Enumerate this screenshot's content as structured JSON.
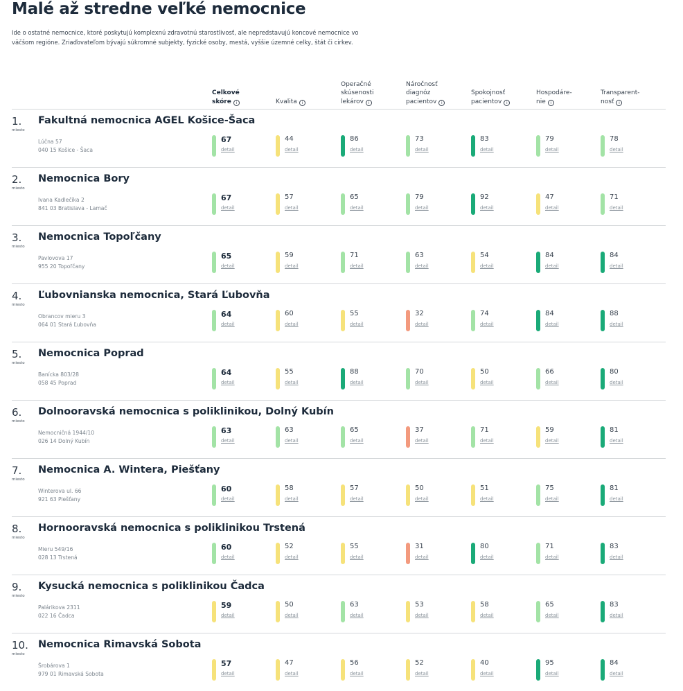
{
  "page": {
    "title": "Malé až stredne veľké nemocnice",
    "intro": "Ide o ostatné nemocnice, ktoré poskytujú komplexnú zdravotnú starostlivosť, ale nepredstavujú koncové nemocnice vo väčšom regióne. Zriaďovateľom bývajú súkromné subjekty, fyzické osoby, mestá, vyššie územné celky, štát či cirkev."
  },
  "colors": {
    "dark_green": "#1aaa78",
    "light_green": "#a3e3a6",
    "yellow": "#f6e27a",
    "salmon": "#f39a7e"
  },
  "columns": [
    {
      "line1": "Celkové",
      "line2": "skóre",
      "line0": ""
    },
    {
      "line1": "",
      "line2": "Kvalita",
      "line0": ""
    },
    {
      "line0": "Operačné",
      "line1": "skúsenosti",
      "line2": "lekárov"
    },
    {
      "line0": "Náročnosť",
      "line1": "diagnóz",
      "line2": "pacientov"
    },
    {
      "line0": "",
      "line1": "Spokojnosť",
      "line2": "pacientov"
    },
    {
      "line0": "",
      "line1": "Hospodáre-",
      "line2": "nie"
    },
    {
      "line0": "",
      "line1": "Transparent-",
      "line2": "nosť"
    }
  ],
  "info_icon": "i",
  "rank_suffix": "miesto",
  "detail_label": "detail",
  "hospitals": [
    {
      "rank": "1.",
      "name": "Fakultná nemocnica AGEL Košice-Šaca",
      "street": "Lúčna 57",
      "city": "040 15 Košice - Šaca",
      "scores": [
        {
          "v": "67",
          "c": "light_green"
        },
        {
          "v": "44",
          "c": "yellow"
        },
        {
          "v": "86",
          "c": "dark_green"
        },
        {
          "v": "73",
          "c": "light_green"
        },
        {
          "v": "83",
          "c": "dark_green"
        },
        {
          "v": "79",
          "c": "light_green"
        },
        {
          "v": "78",
          "c": "light_green"
        }
      ]
    },
    {
      "rank": "2.",
      "name": "Nemocnica Bory",
      "street": "Ivana Kadlečíka 2",
      "city": "841 03 Bratislava - Lamač",
      "scores": [
        {
          "v": "67",
          "c": "light_green"
        },
        {
          "v": "57",
          "c": "yellow"
        },
        {
          "v": "65",
          "c": "light_green"
        },
        {
          "v": "79",
          "c": "light_green"
        },
        {
          "v": "92",
          "c": "dark_green"
        },
        {
          "v": "47",
          "c": "yellow"
        },
        {
          "v": "71",
          "c": "light_green"
        }
      ]
    },
    {
      "rank": "3.",
      "name": "Nemocnica Topoľčany",
      "street": "Pavlovova 17",
      "city": "955 20 Topoľčany",
      "scores": [
        {
          "v": "65",
          "c": "light_green"
        },
        {
          "v": "59",
          "c": "yellow"
        },
        {
          "v": "71",
          "c": "light_green"
        },
        {
          "v": "63",
          "c": "light_green"
        },
        {
          "v": "54",
          "c": "yellow"
        },
        {
          "v": "84",
          "c": "dark_green"
        },
        {
          "v": "84",
          "c": "dark_green"
        }
      ]
    },
    {
      "rank": "4.",
      "name": "Ľubovnianska nemocnica, Stará Ľubovňa",
      "street": "Obrancov mieru 3",
      "city": "064 01 Stará Ľubovňa",
      "scores": [
        {
          "v": "64",
          "c": "light_green"
        },
        {
          "v": "60",
          "c": "yellow"
        },
        {
          "v": "55",
          "c": "yellow"
        },
        {
          "v": "32",
          "c": "salmon"
        },
        {
          "v": "74",
          "c": "light_green"
        },
        {
          "v": "84",
          "c": "dark_green"
        },
        {
          "v": "88",
          "c": "dark_green"
        }
      ]
    },
    {
      "rank": "5.",
      "name": "Nemocnica Poprad",
      "street": "Banícka 803/28",
      "city": "058 45 Poprad",
      "scores": [
        {
          "v": "64",
          "c": "light_green"
        },
        {
          "v": "55",
          "c": "yellow"
        },
        {
          "v": "88",
          "c": "dark_green"
        },
        {
          "v": "70",
          "c": "light_green"
        },
        {
          "v": "50",
          "c": "yellow"
        },
        {
          "v": "66",
          "c": "light_green"
        },
        {
          "v": "80",
          "c": "dark_green"
        }
      ]
    },
    {
      "rank": "6.",
      "name": "Dolnooravská nemocnica s poliklinikou, Dolný Kubín",
      "street": "Nemocničná 1944/10",
      "city": "026 14 Dolný Kubín",
      "scores": [
        {
          "v": "63",
          "c": "light_green"
        },
        {
          "v": "63",
          "c": "light_green"
        },
        {
          "v": "65",
          "c": "light_green"
        },
        {
          "v": "37",
          "c": "salmon"
        },
        {
          "v": "71",
          "c": "light_green"
        },
        {
          "v": "59",
          "c": "yellow"
        },
        {
          "v": "81",
          "c": "dark_green"
        }
      ]
    },
    {
      "rank": "7.",
      "name": "Nemocnica A. Wintera, Piešťany",
      "street": "Winterova ul. 66",
      "city": "921 63 Piešťany",
      "scores": [
        {
          "v": "60",
          "c": "light_green"
        },
        {
          "v": "58",
          "c": "yellow"
        },
        {
          "v": "57",
          "c": "yellow"
        },
        {
          "v": "50",
          "c": "yellow"
        },
        {
          "v": "51",
          "c": "yellow"
        },
        {
          "v": "75",
          "c": "light_green"
        },
        {
          "v": "81",
          "c": "dark_green"
        }
      ]
    },
    {
      "rank": "8.",
      "name": "Hornooravská nemocnica s poliklinikou Trstená",
      "street": "Mieru 549/16",
      "city": "028 13 Trstená",
      "scores": [
        {
          "v": "60",
          "c": "light_green"
        },
        {
          "v": "52",
          "c": "yellow"
        },
        {
          "v": "55",
          "c": "yellow"
        },
        {
          "v": "31",
          "c": "salmon"
        },
        {
          "v": "80",
          "c": "dark_green"
        },
        {
          "v": "71",
          "c": "light_green"
        },
        {
          "v": "83",
          "c": "dark_green"
        }
      ]
    },
    {
      "rank": "9.",
      "name": "Kysucká nemocnica s poliklinikou Čadca",
      "street": "Palárikova 2311",
      "city": "022 16 Čadca",
      "scores": [
        {
          "v": "59",
          "c": "yellow"
        },
        {
          "v": "50",
          "c": "yellow"
        },
        {
          "v": "63",
          "c": "light_green"
        },
        {
          "v": "53",
          "c": "yellow"
        },
        {
          "v": "58",
          "c": "yellow"
        },
        {
          "v": "65",
          "c": "light_green"
        },
        {
          "v": "83",
          "c": "dark_green"
        }
      ]
    },
    {
      "rank": "10.",
      "name": "Nemocnica Rimavská Sobota",
      "street": "Šrobárova 1",
      "city": "979 01 Rimavská Sobota",
      "scores": [
        {
          "v": "57",
          "c": "yellow"
        },
        {
          "v": "47",
          "c": "yellow"
        },
        {
          "v": "56",
          "c": "yellow"
        },
        {
          "v": "52",
          "c": "yellow"
        },
        {
          "v": "40",
          "c": "yellow"
        },
        {
          "v": "95",
          "c": "dark_green"
        },
        {
          "v": "84",
          "c": "dark_green"
        }
      ]
    }
  ]
}
